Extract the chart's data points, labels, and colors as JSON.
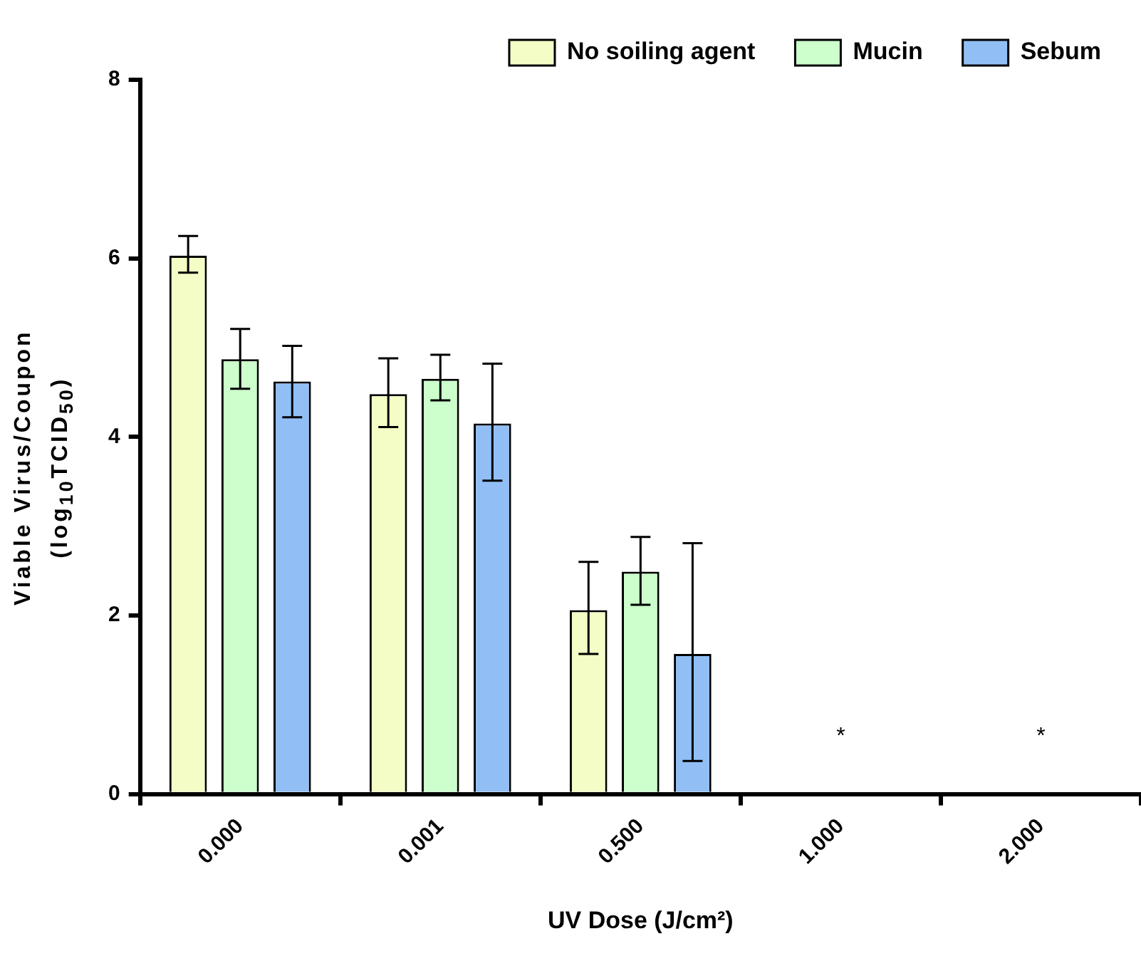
{
  "chart_data": {
    "type": "bar",
    "xlabel": "UV Dose (J/cm²)",
    "ylabel": "Viable Virus/Coupon (log$_{10}$TCID$_{50}$)",
    "categories": [
      "0.000",
      "0.001",
      "0.500",
      "1.000",
      "2.000"
    ],
    "series": [
      {
        "name": "No soiling agent",
        "color": "#f5fdc6",
        "values": [
          6.03,
          4.48,
          2.06,
          null,
          null
        ],
        "errors": [
          [
            5.84,
            6.25
          ],
          [
            4.11,
            4.88
          ],
          [
            1.57,
            2.6
          ],
          null,
          null
        ]
      },
      {
        "name": "Mucin",
        "color": "#ccffcc",
        "values": [
          4.87,
          4.65,
          2.49,
          null,
          null
        ],
        "errors": [
          [
            4.54,
            5.21
          ],
          [
            4.41,
            4.92
          ],
          [
            2.12,
            2.88
          ],
          null,
          null
        ]
      },
      {
        "name": "Sebum",
        "color": "#91bff5",
        "values": [
          4.62,
          4.15,
          1.57,
          null,
          null
        ],
        "errors": [
          [
            4.22,
            5.02
          ],
          [
            3.51,
            4.82
          ],
          [
            0.37,
            2.81
          ],
          null,
          null
        ]
      }
    ],
    "ylim": [
      0,
      8
    ],
    "yticks": [
      0,
      2,
      4,
      6,
      8
    ],
    "grid": false,
    "legend": "top",
    "annotations": [
      "*",
      "*"
    ]
  }
}
